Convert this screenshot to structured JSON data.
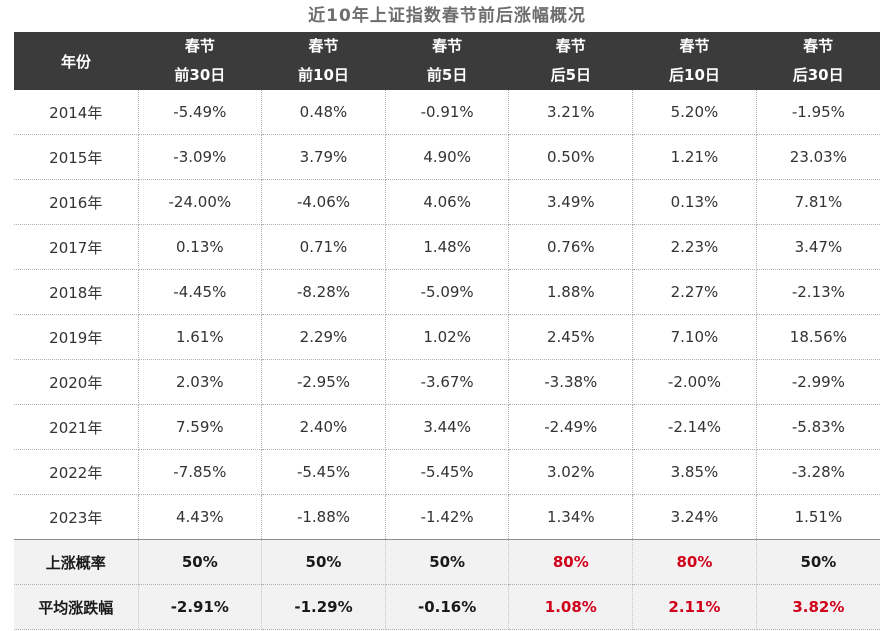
{
  "title": "近10年上证指数春节前后涨幅概况",
  "header": {
    "year_label": "年份",
    "columns": [
      {
        "line1": "春节",
        "line2": "前30日"
      },
      {
        "line1": "春节",
        "line2": "前10日"
      },
      {
        "line1": "春节",
        "line2": "前5日"
      },
      {
        "line1": "春节",
        "line2": "后5日"
      },
      {
        "line1": "春节",
        "line2": "后10日"
      },
      {
        "line1": "春节",
        "line2": "后30日"
      }
    ]
  },
  "rows": [
    {
      "year": "2014年",
      "values": [
        "-5.49%",
        "0.48%",
        "-0.91%",
        "3.21%",
        "5.20%",
        "-1.95%"
      ]
    },
    {
      "year": "2015年",
      "values": [
        "-3.09%",
        "3.79%",
        "4.90%",
        "0.50%",
        "1.21%",
        "23.03%"
      ]
    },
    {
      "year": "2016年",
      "values": [
        "-24.00%",
        "-4.06%",
        "4.06%",
        "3.49%",
        "0.13%",
        "7.81%"
      ]
    },
    {
      "year": "2017年",
      "values": [
        "0.13%",
        "0.71%",
        "1.48%",
        "0.76%",
        "2.23%",
        "3.47%"
      ]
    },
    {
      "year": "2018年",
      "values": [
        "-4.45%",
        "-8.28%",
        "-5.09%",
        "1.88%",
        "2.27%",
        "-2.13%"
      ]
    },
    {
      "year": "2019年",
      "values": [
        "1.61%",
        "2.29%",
        "1.02%",
        "2.45%",
        "7.10%",
        "18.56%"
      ]
    },
    {
      "year": "2020年",
      "values": [
        "2.03%",
        "-2.95%",
        "-3.67%",
        "-3.38%",
        "-2.00%",
        "-2.99%"
      ]
    },
    {
      "year": "2021年",
      "values": [
        "7.59%",
        "2.40%",
        "3.44%",
        "-2.49%",
        "-2.14%",
        "-5.83%"
      ]
    },
    {
      "year": "2022年",
      "values": [
        "-7.85%",
        "-5.45%",
        "-5.45%",
        "3.02%",
        "3.85%",
        "-3.28%"
      ]
    },
    {
      "year": "2023年",
      "values": [
        "4.43%",
        "-1.88%",
        "-1.42%",
        "1.34%",
        "3.24%",
        "1.51%"
      ]
    }
  ],
  "summary": {
    "rise_prob": {
      "label": "上涨概率",
      "values": [
        "50%",
        "50%",
        "50%",
        "80%",
        "80%",
        "50%"
      ]
    },
    "avg_change": {
      "label": "平均涨跌幅",
      "values": [
        "-2.91%",
        "-1.29%",
        "-0.16%",
        "1.08%",
        "2.11%",
        "3.82%"
      ]
    }
  },
  "highlight_color": "#d0021b",
  "header_bg_color": "#3b3b3b"
}
